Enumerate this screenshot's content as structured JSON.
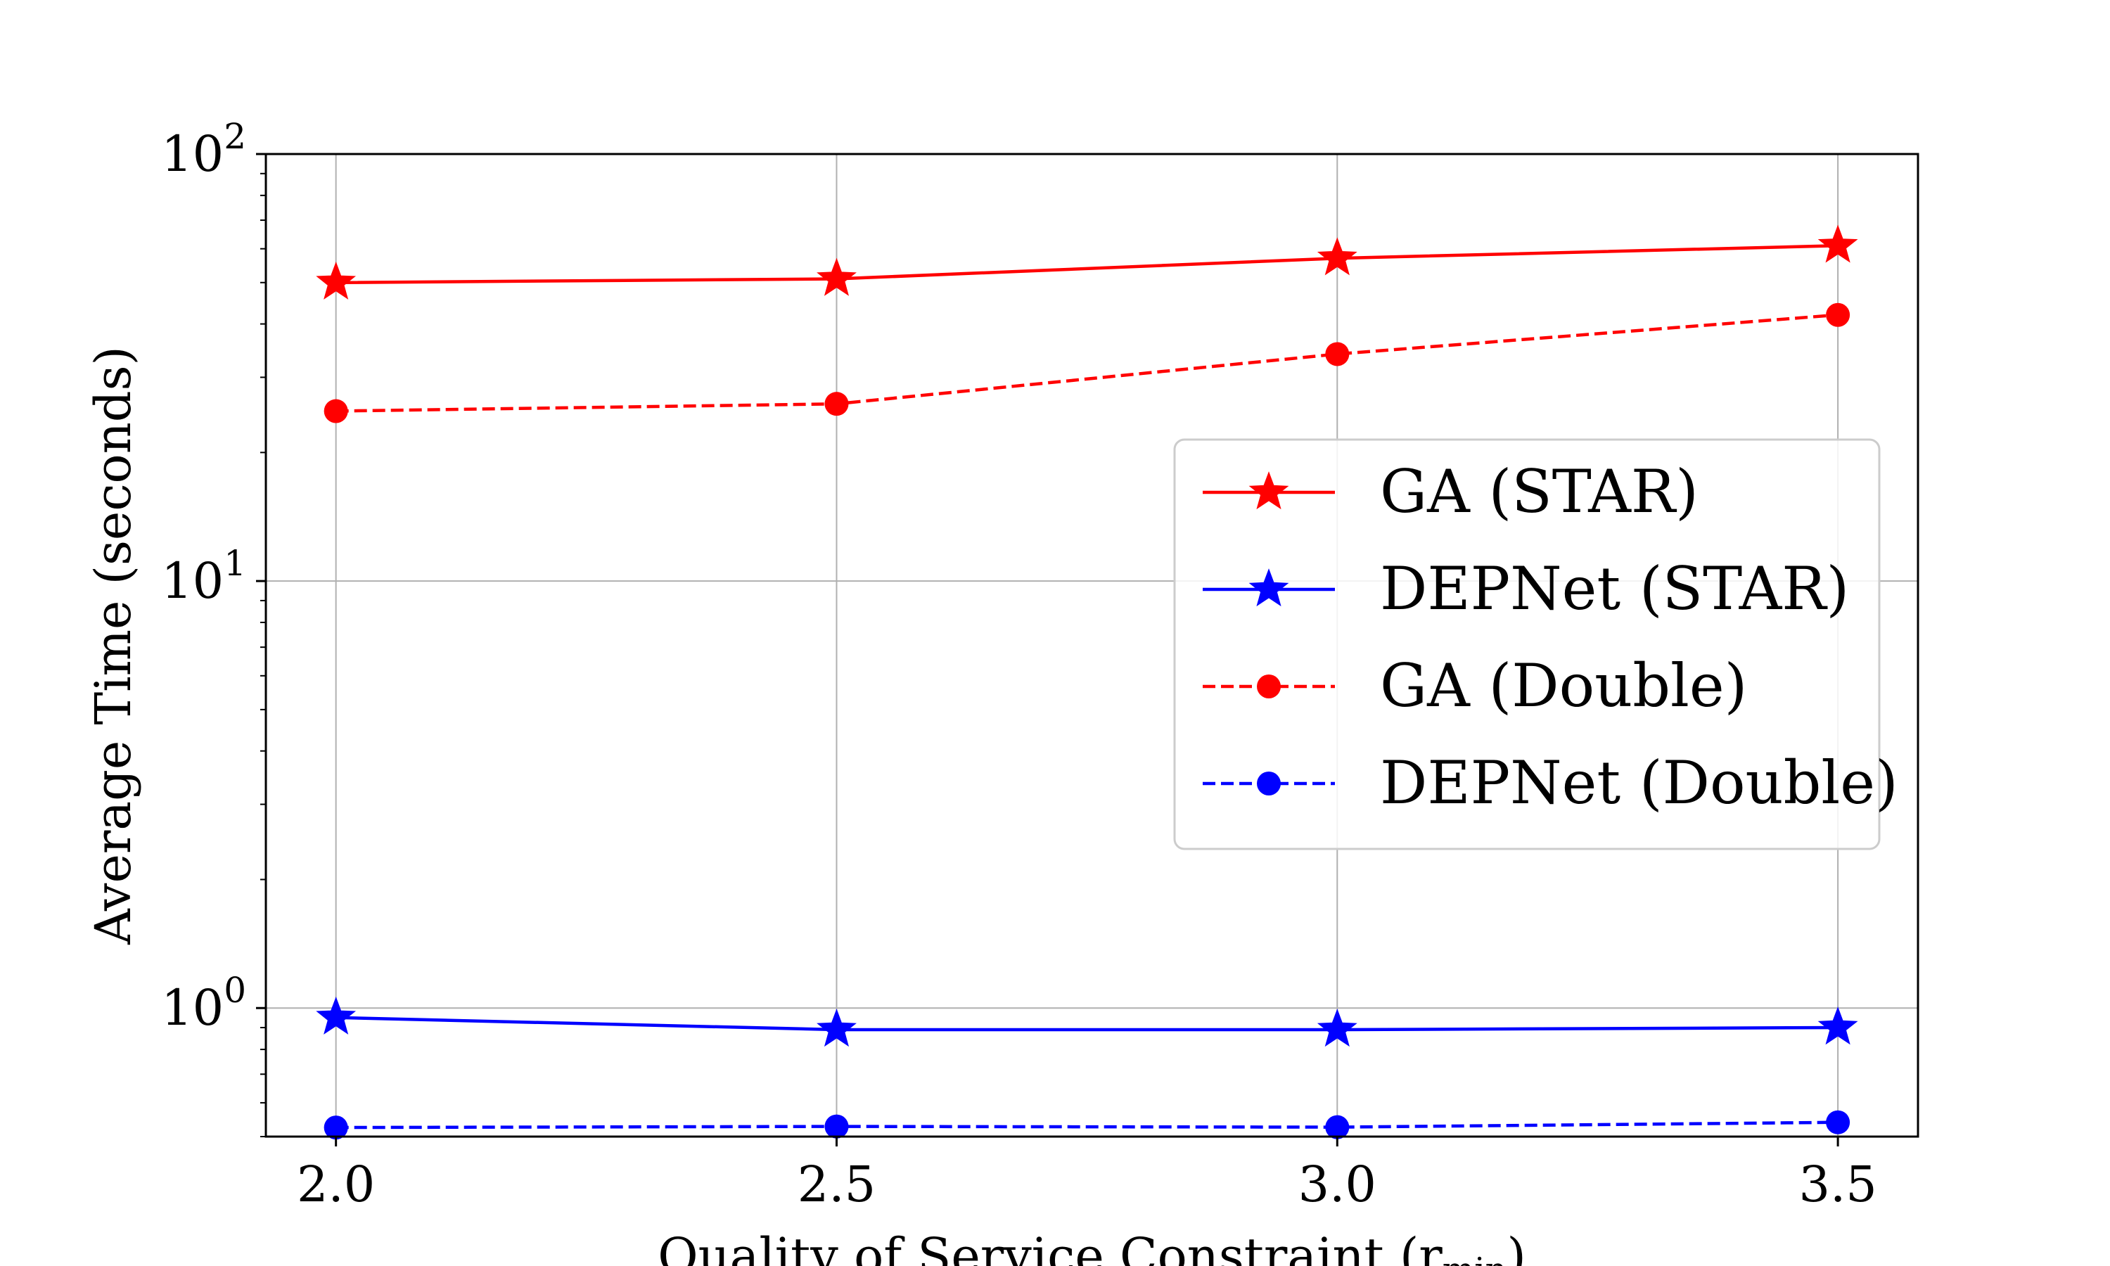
{
  "chart_data": {
    "type": "line",
    "title": "",
    "xlabel": "Quality of Service Constraint (r",
    "xlabel_subscript": "min",
    "xlabel_close": ")",
    "ylabel": "Average Time (seconds)",
    "x": [
      2.0,
      2.5,
      3.0,
      3.5
    ],
    "x_tick_labels": [
      "2.0",
      "2.5",
      "3.0",
      "3.5"
    ],
    "xlim": [
      1.93,
      3.58
    ],
    "y_scale": "log",
    "ylim": [
      0.5,
      100
    ],
    "y_ticks": [
      {
        "base": "10",
        "exp": "2",
        "value": 100
      },
      {
        "base": "10",
        "exp": "1",
        "value": 10
      },
      {
        "base": "10",
        "exp": "0",
        "value": 1
      }
    ],
    "grid": true,
    "legend_position": "center-right",
    "series": [
      {
        "name": "GA (STAR)",
        "values": [
          50,
          51,
          57,
          61
        ],
        "color": "#ff0000",
        "line": "solid",
        "marker": "star"
      },
      {
        "name": "DEPNet (STAR)",
        "values": [
          0.95,
          0.89,
          0.89,
          0.9
        ],
        "color": "#0000ff",
        "line": "solid",
        "marker": "star"
      },
      {
        "name": "GA (Double)",
        "values": [
          25,
          26,
          34,
          42
        ],
        "color": "#ff0000",
        "line": "dashed",
        "marker": "circle"
      },
      {
        "name": "DEPNet (Double)",
        "values": [
          0.525,
          0.528,
          0.526,
          0.54
        ],
        "color": "#0000ff",
        "line": "dashed",
        "marker": "circle"
      }
    ]
  }
}
